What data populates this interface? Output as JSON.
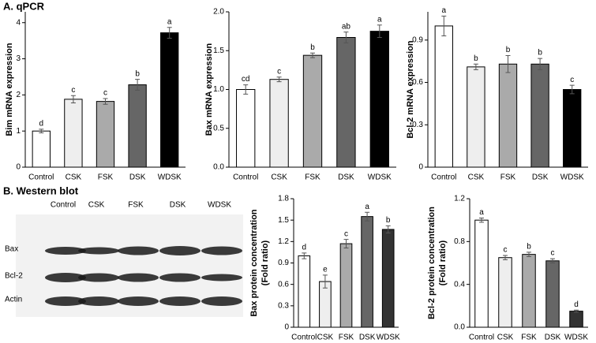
{
  "sections": {
    "a": "A. qPCR",
    "b": "B. Western blot"
  },
  "blot": {
    "lanes": [
      "Control",
      "CSK",
      "FSK",
      "DSK",
      "WDSK"
    ],
    "rows": [
      "Bax",
      "Bcl-2",
      "Actin"
    ]
  },
  "chart_data": [
    {
      "type": "bar",
      "ylabel": [
        "Bim mRNA expression"
      ],
      "categories": [
        "Control",
        "CSK",
        "FSK",
        "DSK",
        "WDSK"
      ],
      "values": [
        1.0,
        1.88,
        1.82,
        2.28,
        3.72
      ],
      "errors": [
        0.05,
        0.1,
        0.08,
        0.15,
        0.15
      ],
      "annotations": [
        "d",
        "c",
        "c",
        "b",
        "a"
      ],
      "colors": [
        "#ffffff",
        "#eeeeee",
        "#aaaaaa",
        "#666666",
        "#000000"
      ],
      "ylim": [
        0,
        4.3
      ],
      "yticks": [
        0,
        1,
        2,
        3,
        4
      ]
    },
    {
      "type": "bar",
      "ylabel": [
        "Bax mRNA expression"
      ],
      "categories": [
        "Control",
        "CSK",
        "FSK",
        "DSK",
        "WDSK"
      ],
      "values": [
        1.0,
        1.13,
        1.44,
        1.67,
        1.75
      ],
      "errors": [
        0.06,
        0.03,
        0.03,
        0.07,
        0.08
      ],
      "annotations": [
        "cd",
        "c",
        "b",
        "ab",
        "a"
      ],
      "colors": [
        "#ffffff",
        "#eeeeee",
        "#aaaaaa",
        "#666666",
        "#000000"
      ],
      "ylim": [
        0,
        2.0
      ],
      "yticks": [
        {
          "value": 0,
          "label": "0.0"
        },
        0.5,
        {
          "value": 1,
          "label": "1.0"
        },
        1.5,
        {
          "value": 2,
          "label": "2.0"
        }
      ]
    },
    {
      "type": "bar",
      "ylabel": [
        "Bcl-2 mRNA expression"
      ],
      "categories": [
        "Control",
        "CSK",
        "FSK",
        "DSK",
        "WDSK"
      ],
      "values": [
        1.0,
        0.71,
        0.73,
        0.73,
        0.55
      ],
      "errors": [
        0.07,
        0.02,
        0.06,
        0.04,
        0.03
      ],
      "annotations": [
        "a",
        "b",
        "b",
        "b",
        "c"
      ],
      "colors": [
        "#ffffff",
        "#eeeeee",
        "#aaaaaa",
        "#666666",
        "#000000"
      ],
      "ylim": [
        0,
        1.1
      ],
      "yticks": [
        0,
        0.3,
        0.6,
        0.9
      ]
    },
    {
      "type": "bar",
      "ylabel": [
        "Bax protein concentration",
        "(Fold ratio)"
      ],
      "categories": [
        "Control",
        "CSK",
        "FSK",
        "DSK",
        "WDSK"
      ],
      "values": [
        1.0,
        0.64,
        1.17,
        1.55,
        1.37
      ],
      "errors": [
        0.04,
        0.09,
        0.06,
        0.06,
        0.05
      ],
      "annotations": [
        "d",
        "e",
        "c",
        "a",
        "b"
      ],
      "colors": [
        "#ffffff",
        "#eeeeee",
        "#aaaaaa",
        "#666666",
        "#333333"
      ],
      "ylim": [
        0,
        1.8
      ],
      "yticks": [
        0,
        0.3,
        0.6,
        0.9,
        1.2,
        1.5,
        1.8
      ]
    },
    {
      "type": "bar",
      "ylabel": [
        "Bcl-2 protein concentration",
        "(Fold ratio)"
      ],
      "categories": [
        "Control",
        "CSK",
        "FSK",
        "DSK",
        "WDSK"
      ],
      "values": [
        1.0,
        0.65,
        0.68,
        0.62,
        0.15
      ],
      "errors": [
        0.02,
        0.02,
        0.02,
        0.02,
        0.01
      ],
      "annotations": [
        "a",
        "c",
        "b",
        "c",
        "d"
      ],
      "colors": [
        "#ffffff",
        "#eeeeee",
        "#aaaaaa",
        "#666666",
        "#333333"
      ],
      "ylim": [
        0,
        1.2
      ],
      "yticks": [
        {
          "value": 0,
          "label": "0.0"
        },
        0.4,
        0.8,
        1.2
      ]
    }
  ]
}
